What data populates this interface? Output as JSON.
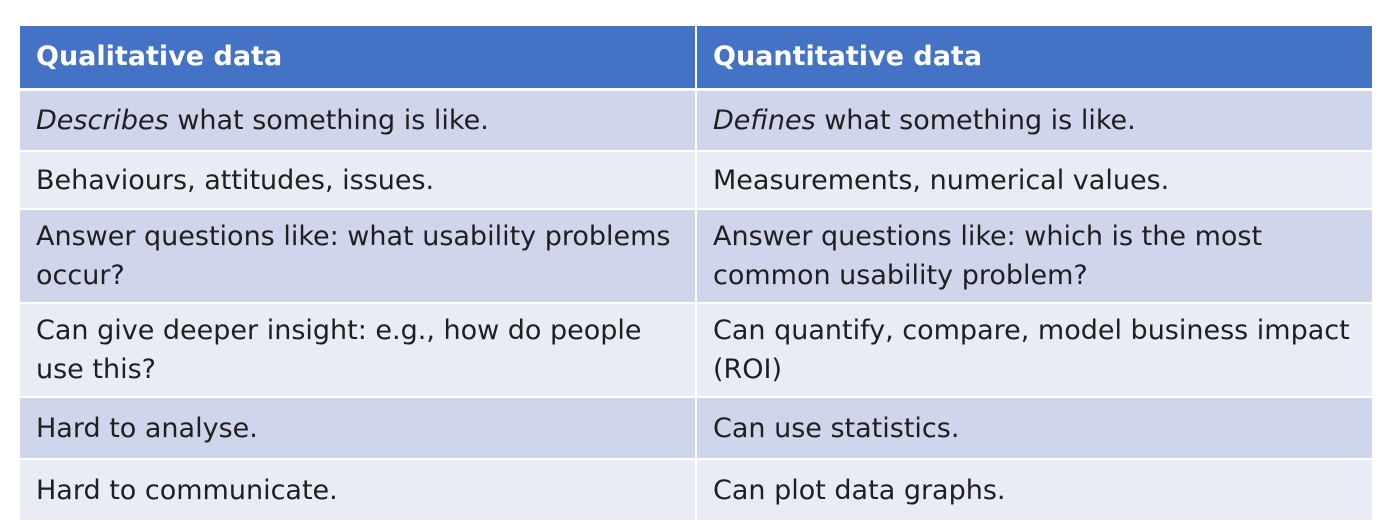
{
  "table": {
    "headers": [
      "Qualitative data",
      "Quantitative data"
    ],
    "rows": [
      {
        "qualitative": {
          "emphasis": "Describes",
          "rest": " what something is like."
        },
        "quantitative": {
          "emphasis": "Defines",
          "rest": " what something is like."
        }
      },
      {
        "qualitative": {
          "text": "Behaviours, attitudes, issues."
        },
        "quantitative": {
          "text": "Measurements, numerical values."
        }
      },
      {
        "qualitative": {
          "text": "Answer questions like: what usability problems occur?"
        },
        "quantitative": {
          "text": "Answer questions like: which is the most common usability problem?"
        }
      },
      {
        "qualitative": {
          "text": "Can give deeper insight: e.g., how do people use this?"
        },
        "quantitative": {
          "text": "Can quantify, compare, model business impact (ROI)"
        }
      },
      {
        "qualitative": {
          "text": "Hard to analyse."
        },
        "quantitative": {
          "text": "Can use statistics."
        }
      },
      {
        "qualitative": {
          "text": "Hard to communicate."
        },
        "quantitative": {
          "text": "Can plot data graphs."
        }
      }
    ]
  },
  "colors": {
    "header_bg": "#4472c4",
    "row_odd_bg": "#cfd5ea",
    "row_even_bg": "#e9ebf5"
  }
}
